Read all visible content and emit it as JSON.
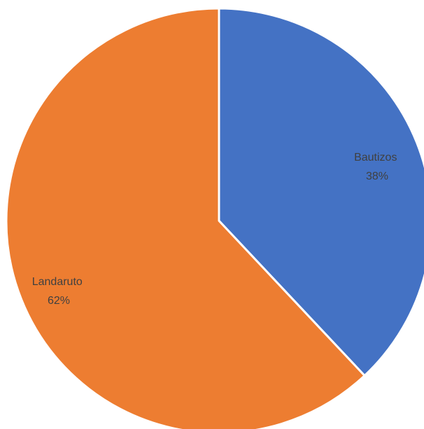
{
  "chart_data": {
    "type": "pie",
    "title": "",
    "categories": [
      "Bautizos",
      "Landaruto"
    ],
    "values": [
      38,
      62
    ],
    "labels": [
      {
        "name": "Bautizos",
        "percent": "38%"
      },
      {
        "name": "Landaruto",
        "percent": "62%"
      }
    ],
    "colors": [
      "#4472C4",
      "#ED7D31"
    ],
    "legend": "none",
    "start_angle": "12 o'clock",
    "direction": "clockwise"
  }
}
